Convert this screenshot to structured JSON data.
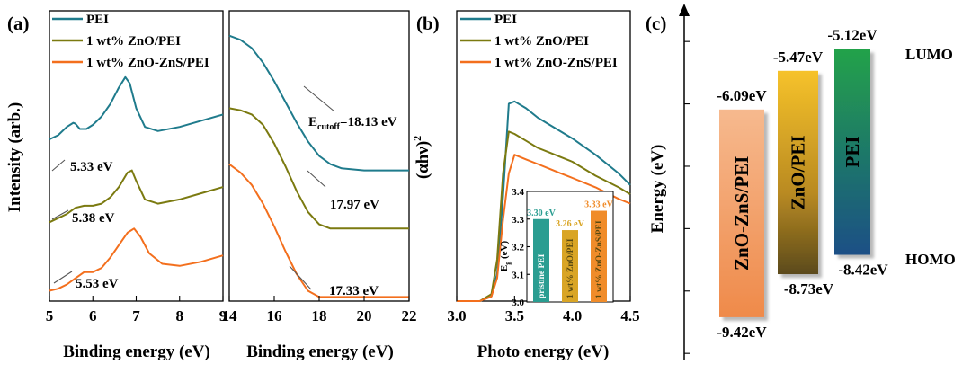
{
  "colors": {
    "pei": "#1f7b8c",
    "zno": "#7b7a10",
    "znozns": "#f36f1d",
    "inset_pei": "#2a9d91",
    "inset_zno": "#d9a525",
    "inset_znozns": "#f08c2a"
  },
  "panels": {
    "a": "(a)",
    "b": "(b)",
    "c": "(c)"
  },
  "legend": [
    "PEI",
    "1 wt% ZnO/PEI",
    "1 wt% ZnO-ZnS/PEI"
  ],
  "chart_data": [
    {
      "id": "a_left",
      "type": "line",
      "xlabel": "Binding energy (eV)",
      "ylabel": "Intensity (arb.)",
      "xlim": [
        5,
        9
      ],
      "xticks": [
        "5",
        "6",
        "7",
        "8",
        "9"
      ],
      "annotations": [
        "5.33 eV",
        "5.38 eV",
        "5.53 eV"
      ],
      "series": [
        {
          "name": "PEI",
          "x": [
            5,
            5.2,
            5.4,
            5.55,
            5.6,
            5.7,
            5.85,
            6.0,
            6.2,
            6.4,
            6.6,
            6.75,
            6.85,
            7.0,
            7.2,
            7.5,
            8.0,
            8.5,
            9.0
          ],
          "y": [
            0.78,
            0.8,
            0.84,
            0.86,
            0.855,
            0.83,
            0.83,
            0.85,
            0.89,
            0.95,
            1.03,
            1.08,
            1.05,
            0.93,
            0.84,
            0.82,
            0.84,
            0.87,
            0.9
          ]
        },
        {
          "name": "1 wt% ZnO/PEI",
          "x": [
            5,
            5.2,
            5.4,
            5.6,
            5.8,
            6.0,
            6.2,
            6.4,
            6.6,
            6.8,
            6.9,
            7.0,
            7.2,
            7.5,
            8.0,
            8.5,
            9.0
          ],
          "y": [
            0.38,
            0.4,
            0.42,
            0.45,
            0.46,
            0.46,
            0.47,
            0.5,
            0.55,
            0.62,
            0.63,
            0.58,
            0.49,
            0.47,
            0.49,
            0.52,
            0.55
          ]
        },
        {
          "name": "1 wt% ZnO-ZnS/PEI",
          "x": [
            5,
            5.2,
            5.4,
            5.6,
            5.8,
            6.0,
            6.2,
            6.4,
            6.6,
            6.8,
            6.95,
            7.1,
            7.3,
            7.6,
            8.0,
            8.5,
            9.0
          ],
          "y": [
            0.05,
            0.06,
            0.08,
            0.11,
            0.14,
            0.14,
            0.16,
            0.21,
            0.27,
            0.33,
            0.35,
            0.31,
            0.23,
            0.18,
            0.17,
            0.19,
            0.22
          ]
        }
      ]
    },
    {
      "id": "a_right",
      "type": "line",
      "xlabel": "Binding energy (eV)",
      "xlim": [
        14,
        22
      ],
      "xticks": [
        "14",
        "16",
        "18",
        "20",
        "22"
      ],
      "annotations": [
        "18.13 eV",
        "17.97 eV",
        "17.33 eV"
      ],
      "annotation_label": {
        "main": "E",
        "sub": "cutoff"
      },
      "series": [
        {
          "name": "PEI",
          "x": [
            14,
            14.5,
            15,
            15.5,
            16,
            16.5,
            17,
            17.5,
            18,
            18.5,
            19,
            20,
            21,
            22
          ],
          "y": [
            1.28,
            1.26,
            1.22,
            1.15,
            1.06,
            0.96,
            0.86,
            0.77,
            0.7,
            0.66,
            0.64,
            0.63,
            0.63,
            0.63
          ]
        },
        {
          "name": "1 wt% ZnO/PEI",
          "x": [
            14,
            14.5,
            15,
            15.5,
            16,
            16.5,
            17,
            17.5,
            18,
            18.5,
            19,
            20,
            21,
            22
          ],
          "y": [
            0.93,
            0.92,
            0.9,
            0.85,
            0.76,
            0.65,
            0.53,
            0.43,
            0.37,
            0.35,
            0.35,
            0.35,
            0.35,
            0.35
          ]
        },
        {
          "name": "1 wt% ZnO-ZnS/PEI",
          "x": [
            14,
            14.5,
            15,
            15.5,
            16,
            16.5,
            17,
            17.5,
            18,
            19,
            20,
            21,
            22
          ],
          "y": [
            0.66,
            0.62,
            0.56,
            0.47,
            0.36,
            0.24,
            0.13,
            0.05,
            0.02,
            0.02,
            0.02,
            0.02,
            0.02
          ]
        }
      ]
    },
    {
      "id": "b",
      "type": "line",
      "xlabel": "Photo energy (eV)",
      "ylabel": "(αhν)",
      "ylabel_sup": "2",
      "xlim": [
        3.0,
        4.5
      ],
      "xticks": [
        "3.0",
        "3.5",
        "4.0",
        "4.5"
      ],
      "series": [
        {
          "name": "PEI",
          "x": [
            3.0,
            3.2,
            3.3,
            3.35,
            3.4,
            3.45,
            3.5,
            3.6,
            3.7,
            3.8,
            3.9,
            4.0,
            4.2,
            4.4,
            4.5
          ],
          "y": [
            0.0,
            0.0,
            0.02,
            0.12,
            0.45,
            0.85,
            0.86,
            0.83,
            0.79,
            0.76,
            0.73,
            0.7,
            0.63,
            0.55,
            0.5
          ]
        },
        {
          "name": "1 wt% ZnO/PEI",
          "x": [
            3.0,
            3.2,
            3.3,
            3.35,
            3.4,
            3.45,
            3.5,
            3.6,
            3.7,
            3.8,
            3.9,
            4.0,
            4.2,
            4.4,
            4.5
          ],
          "y": [
            0.0,
            0.0,
            0.03,
            0.18,
            0.55,
            0.73,
            0.72,
            0.69,
            0.66,
            0.64,
            0.62,
            0.6,
            0.54,
            0.49,
            0.46
          ]
        },
        {
          "name": "1 wt% ZnO-ZnS/PEI",
          "x": [
            3.0,
            3.2,
            3.3,
            3.35,
            3.4,
            3.45,
            3.5,
            3.6,
            3.7,
            3.8,
            3.9,
            4.0,
            4.2,
            4.4,
            4.5
          ],
          "y": [
            0.0,
            0.0,
            0.02,
            0.1,
            0.35,
            0.55,
            0.63,
            0.61,
            0.59,
            0.57,
            0.55,
            0.53,
            0.49,
            0.44,
            0.42
          ]
        }
      ]
    },
    {
      "id": "b_inset",
      "type": "bar",
      "ylabel": "E",
      "ylabel_sub": "g",
      "ylabel_unit": "(eV)",
      "ylim": [
        3.0,
        3.4
      ],
      "yticks": [
        "3.0",
        "3.1",
        "3.2",
        "3.3",
        "3.4"
      ],
      "categories": [
        "pristine PEI",
        "1 wt% ZnO/PEI",
        "1 wt% ZnO-ZnS/PEI"
      ],
      "values": [
        3.3,
        3.26,
        3.33
      ],
      "value_labels": [
        "3.30 eV",
        "3.26 eV",
        "3.33 eV"
      ]
    },
    {
      "id": "c",
      "type": "bar",
      "ylabel": "Energy (eV)",
      "labels": [
        "LUMO",
        "HOMO"
      ],
      "bars": [
        {
          "name": "ZnO-ZnS/PEI",
          "top": -6.09,
          "bottom": -9.42,
          "top_label": "-6.09eV",
          "bottom_label": "-9.42eV"
        },
        {
          "name": "ZnO/PEI",
          "top": -5.47,
          "bottom": -8.73,
          "top_label": "-5.47eV",
          "bottom_label": "-8.73eV"
        },
        {
          "name": "PEI",
          "top": -5.12,
          "bottom": -8.42,
          "top_label": "-5.12eV",
          "bottom_label": "-8.42eV"
        }
      ]
    }
  ]
}
